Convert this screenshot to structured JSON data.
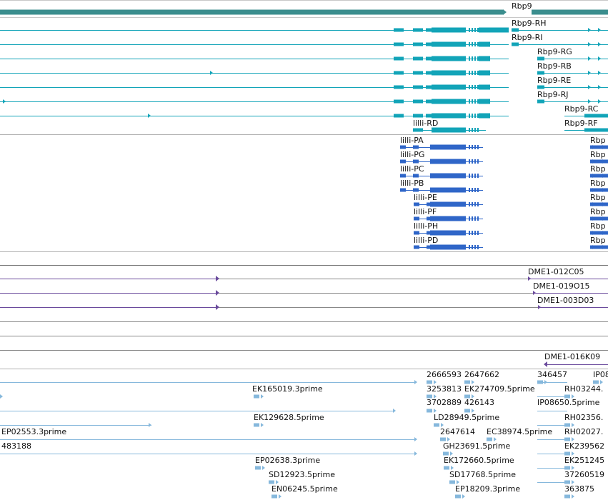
{
  "colors": {
    "gene": "#3b8e8e",
    "transcript": "#12a4b8",
    "protein": "#2f66c8",
    "cdna": "#6a4a9c",
    "est": "#86b8dc",
    "separator": "#b8b8b8"
  },
  "gene_track": {
    "label": "Rbp9"
  },
  "transcripts": {
    "right": [
      "Rbp9-RH",
      "Rbp9-RI",
      "Rbp9-RG",
      "Rbp9-RB",
      "Rbp9-RE",
      "Rbp9-RJ",
      "Rbp9-RC",
      "Rbp9-RF"
    ],
    "left": [
      "lilli-RD"
    ]
  },
  "proteins": {
    "left": [
      "lilli-PA",
      "lilli-PG",
      "lilli-PC",
      "lilli-PB",
      "lilli-PE",
      "lilli-PF",
      "lilli-PH",
      "lilli-PD"
    ],
    "right": [
      "Rbp",
      "Rbp",
      "Rbp",
      "Rbp",
      "Rbp",
      "Rbp",
      "Rbp",
      "Rbp"
    ]
  },
  "cdna_clones": [
    "DME1-012C05",
    "DME1-019O15",
    "DME1-003D03",
    "DME1-016K09"
  ],
  "est_labels": [
    "2666593",
    "2647662",
    "346457",
    "IP08",
    "EK165019.3prime",
    "3253813",
    "EK274709.5prime",
    "RH03244.",
    "3702889",
    "426143",
    "IP08650.5prime",
    "EK129628.5prime",
    "LD28949.5prime",
    "RH02356.",
    "EP02553.3prime",
    "2647614",
    "EC38974.5prime",
    "RH02027.",
    "483188",
    "GH23691.5prime",
    "EK239562",
    "EP02638.3prime",
    "EK172660.5prime",
    "EK251245",
    "SD12923.5prime",
    "SD17768.5prime",
    "37260519",
    "EN06245.5prime",
    "EP18209.3prime",
    "363875"
  ]
}
